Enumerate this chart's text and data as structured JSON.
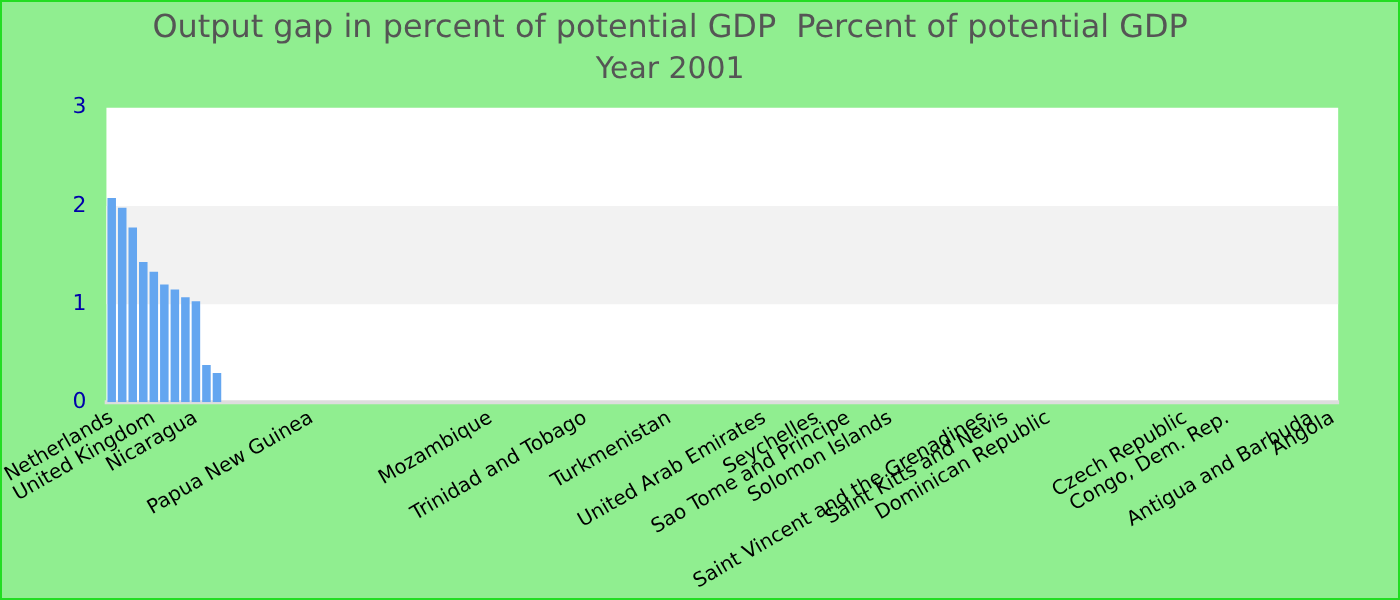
{
  "chart_data": {
    "type": "bar",
    "title": "Output gap in percent of potential GDP  Percent of potential GDP",
    "subtitle": "Year 2001",
    "categories": [
      "Netherlands",
      null,
      null,
      null,
      "United Kingdom",
      null,
      null,
      null,
      "Nicaragua",
      null,
      null,
      null,
      null,
      null,
      null,
      null,
      null,
      null,
      null,
      "Papua New Guinea",
      null,
      null,
      null,
      null,
      null,
      null,
      null,
      null,
      null,
      null,
      null,
      null,
      null,
      null,
      null,
      null,
      "Mozambique",
      null,
      null,
      null,
      null,
      null,
      null,
      null,
      null,
      "Trinidad and Tobago",
      null,
      null,
      null,
      null,
      null,
      null,
      null,
      "Turkmenistan",
      null,
      null,
      null,
      null,
      null,
      null,
      null,
      null,
      "United Arab Emirates",
      null,
      null,
      null,
      null,
      "Seychelles",
      null,
      null,
      "Sao Tome and Principe",
      null,
      null,
      null,
      "Solomon Islands",
      null,
      null,
      null,
      null,
      null,
      null,
      null,
      null,
      "Saint Vincent and the Grenadines",
      null,
      "Saint Kitts and Nevis",
      null,
      null,
      null,
      "Dominican Republic",
      null,
      null,
      null,
      null,
      null,
      null,
      null,
      null,
      null,
      null,
      null,
      null,
      "Czech Republic",
      null,
      null,
      null,
      "Congo, Dem. Rep.",
      null,
      null,
      null,
      null,
      null,
      null,
      null,
      "Antigua and Barbuda",
      null,
      "Angola"
    ],
    "values": [
      2.08,
      1.98,
      1.78,
      1.43,
      1.33,
      1.2,
      1.15,
      1.07,
      1.03,
      0.38,
      0.3,
      null,
      null,
      null,
      null,
      null,
      null,
      null,
      null,
      null,
      null,
      null,
      null,
      null,
      null,
      null,
      null,
      null,
      null,
      null,
      null,
      null,
      null,
      null,
      null,
      null,
      null,
      null,
      null,
      null,
      null,
      null,
      null,
      null,
      null,
      null,
      null,
      null,
      null,
      null,
      null,
      null,
      null,
      null,
      null,
      null,
      null,
      null,
      null,
      null,
      null,
      null,
      null,
      null,
      null,
      null,
      null,
      null,
      null,
      null,
      null,
      null,
      null,
      null,
      null,
      null,
      null,
      null,
      null,
      null,
      null,
      null,
      null,
      null,
      null,
      null,
      null,
      null,
      null,
      null,
      null,
      null,
      null,
      null,
      null,
      null,
      null,
      null,
      null,
      null,
      null,
      null,
      null,
      null,
      null,
      null,
      null,
      null,
      null,
      null,
      null,
      null,
      null,
      null,
      null,
      null,
      null
    ],
    "color": "#64a6f0",
    "ylim": [
      0,
      3
    ],
    "yticks": [
      0,
      1,
      2,
      3
    ],
    "grid": false,
    "bands": [
      {
        "axis": "y",
        "from": 1,
        "to": 2,
        "color": "#f2f2f2"
      }
    ]
  }
}
